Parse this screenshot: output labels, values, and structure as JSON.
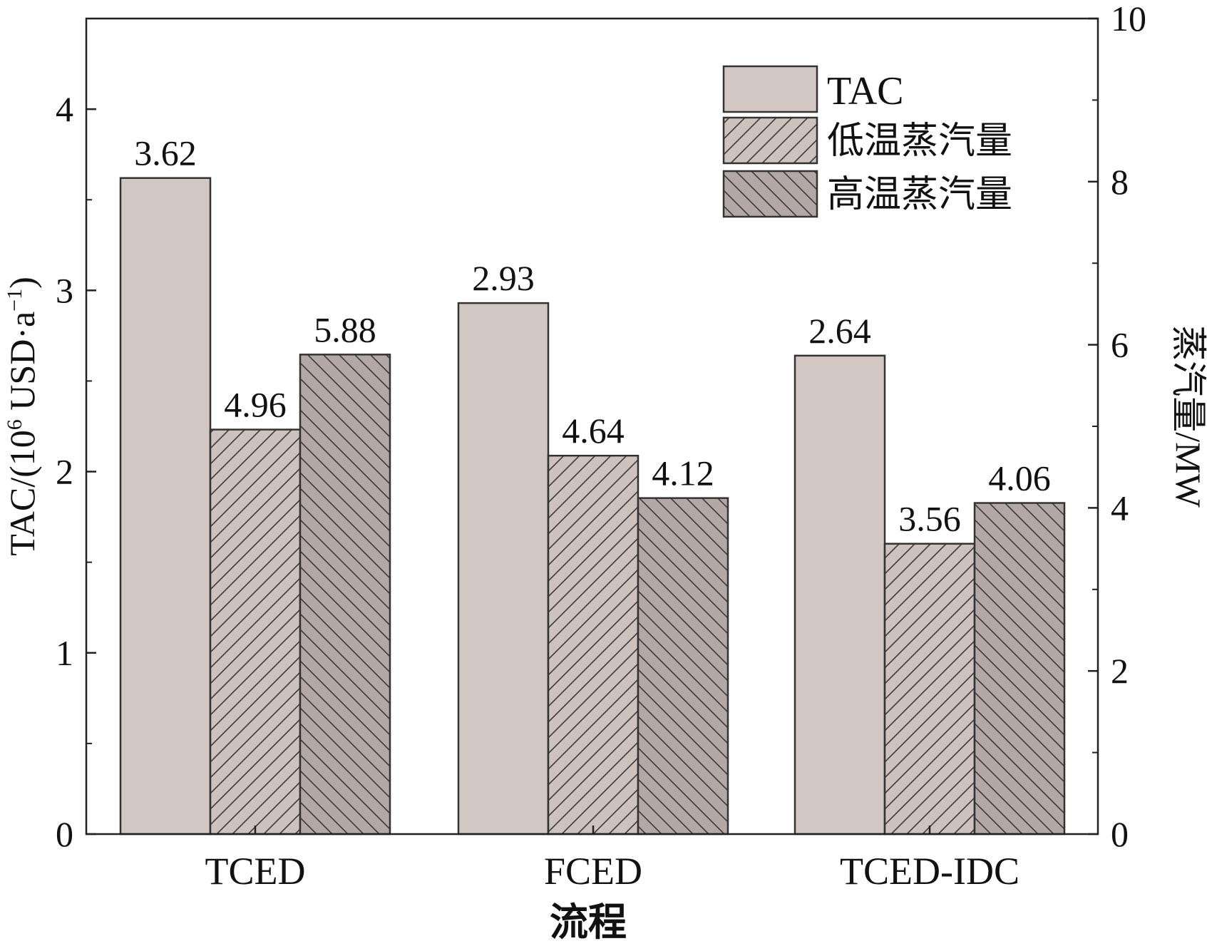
{
  "chart_data": {
    "type": "bar",
    "categories": [
      "TCED",
      "FCED",
      "TCED-IDC"
    ],
    "xlabel": "流程",
    "ylabel_left": "TAC/(10⁶ USD·a⁻¹)",
    "ylabel_left_parts": {
      "prefix": "TAC/(10",
      "exp1": "6",
      "middle": " USD·a",
      "exp2": "−1",
      "suffix": ")"
    },
    "ylabel_right": "蒸汽量/MW",
    "ylim_left": [
      0,
      4.5
    ],
    "ylim_right": [
      0,
      10
    ],
    "yticks_left": [
      "0",
      "1",
      "2",
      "3",
      "4"
    ],
    "yticks_right": [
      "0",
      "2",
      "4",
      "6",
      "8",
      "10"
    ],
    "legend_position": "top-right",
    "grid": false,
    "series": [
      {
        "name": "TAC",
        "axis": "left",
        "values": [
          3.62,
          2.93,
          2.64
        ],
        "labels": [
          "3.62",
          "2.93",
          "2.64"
        ],
        "fill": "#d3c7c3",
        "pattern": "none"
      },
      {
        "name": "低温蒸汽量",
        "axis": "right",
        "values": [
          4.96,
          4.64,
          3.56
        ],
        "labels": [
          "4.96",
          "4.64",
          "3.56"
        ],
        "fill": "#cdc2be",
        "pattern": "diagonal-forward"
      },
      {
        "name": "高温蒸汽量",
        "axis": "right",
        "values": [
          5.88,
          4.12,
          4.06
        ],
        "labels": [
          "5.88",
          "4.12",
          "4.06"
        ],
        "fill": "#b3a8a5",
        "pattern": "diagonal-backward"
      }
    ]
  }
}
